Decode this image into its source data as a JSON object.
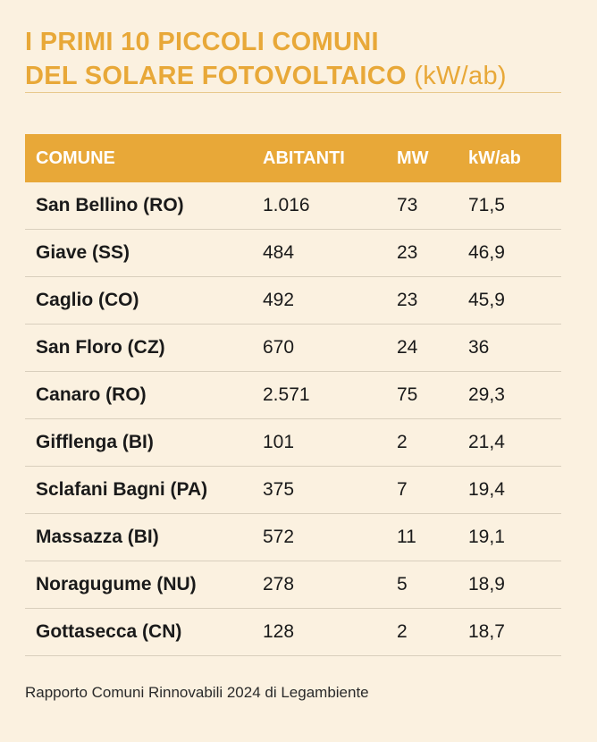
{
  "title": {
    "line1": "I PRIMI 10 PICCOLI COMUNI",
    "line2": "DEL SOLARE FOTOVOLTAICO",
    "unit": "(kW/ab)"
  },
  "chart_data": {
    "type": "table",
    "columns": [
      "COMUNE",
      "ABITANTI",
      "MW",
      "kW/ab"
    ],
    "rows": [
      [
        "San Bellino (RO)",
        "1.016",
        "73",
        "71,5"
      ],
      [
        "Giave (SS)",
        "484",
        "23",
        "46,9"
      ],
      [
        "Caglio (CO)",
        "492",
        "23",
        "45,9"
      ],
      [
        "San Floro (CZ)",
        "670",
        "24",
        "36"
      ],
      [
        "Canaro (RO)",
        "2.571",
        "75",
        "29,3"
      ],
      [
        "Gifflenga (BI)",
        "101",
        "2",
        "21,4"
      ],
      [
        "Sclafani Bagni (PA)",
        "375",
        "7",
        "19,4"
      ],
      [
        "Massazza (BI)",
        "572",
        "11",
        "19,1"
      ],
      [
        "Noragugume (NU)",
        "278",
        "5",
        "18,9"
      ],
      [
        "Gottasecca (CN)",
        "128",
        "2",
        "18,7"
      ]
    ]
  },
  "source": "Rapporto Comuni Rinnovabili 2024 di Legambiente",
  "colors": {
    "accent": "#e8a838",
    "background": "#fbf1e0",
    "header_text": "#ffffff",
    "row_divider": "#d9cfbd"
  }
}
